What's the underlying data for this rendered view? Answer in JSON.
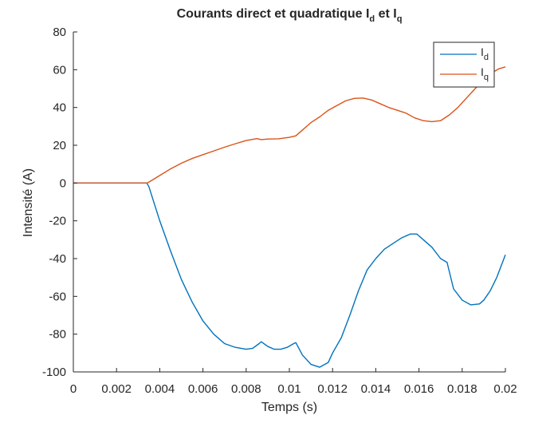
{
  "chart_data": {
    "type": "line",
    "title": {
      "main": "Courants direct et quadratique I",
      "sub1": "d",
      "mid": " et I",
      "sub2": "q"
    },
    "xlabel": "Temps (s)",
    "ylabel": "Intensité (A)",
    "xlim": [
      0,
      0.02
    ],
    "ylim": [
      -100,
      80
    ],
    "xticks": [
      0,
      0.002,
      0.004,
      0.006,
      0.008,
      0.01,
      0.012,
      0.014,
      0.016,
      0.018,
      0.02
    ],
    "xtick_labels": [
      "0",
      "0.002",
      "0.004",
      "0.006",
      "0.008",
      "0.01",
      "0.012",
      "0.014",
      "0.016",
      "0.018",
      "0.02"
    ],
    "yticks": [
      -100,
      -80,
      -60,
      -40,
      -20,
      0,
      20,
      40,
      60,
      80
    ],
    "ytick_labels": [
      "-100",
      "-80",
      "-60",
      "-40",
      "-20",
      "0",
      "20",
      "40",
      "60",
      "80"
    ],
    "grid": false,
    "legend_position": "top-right",
    "series": [
      {
        "name": "I",
        "subscript": "d",
        "color": "#0072BD",
        "x": [
          0,
          0.0034,
          0.0035,
          0.004,
          0.0045,
          0.005,
          0.0055,
          0.006,
          0.0065,
          0.007,
          0.0075,
          0.008,
          0.0083,
          0.0086,
          0.0087,
          0.009,
          0.0093,
          0.0096,
          0.0099,
          0.0102,
          0.0103,
          0.0106,
          0.011,
          0.0114,
          0.0118,
          0.012,
          0.0124,
          0.0128,
          0.0132,
          0.0136,
          0.014,
          0.0144,
          0.0148,
          0.0152,
          0.0156,
          0.0159,
          0.0162,
          0.0166,
          0.017,
          0.0173,
          0.0176,
          0.018,
          0.0184,
          0.0188,
          0.019,
          0.0193,
          0.0196,
          0.02
        ],
        "y": [
          0,
          0,
          -2,
          -20,
          -36,
          -51,
          -63,
          -73,
          -80,
          -85,
          -87,
          -88,
          -87.5,
          -85,
          -84,
          -86.5,
          -88,
          -88,
          -87,
          -85,
          -84.5,
          -91,
          -96,
          -97.5,
          -95,
          -90,
          -82,
          -70,
          -57,
          -46,
          -40,
          -35,
          -32,
          -29,
          -27,
          -27,
          -30,
          -34,
          -40,
          -42,
          -56,
          -62,
          -64.5,
          -64,
          -62,
          -57,
          -50,
          -38
        ]
      },
      {
        "name": "I",
        "subscript": "q",
        "color": "#D95319",
        "x": [
          0,
          0.0034,
          0.0035,
          0.004,
          0.0045,
          0.005,
          0.0055,
          0.006,
          0.0065,
          0.007,
          0.0075,
          0.008,
          0.0085,
          0.0087,
          0.009,
          0.0095,
          0.01,
          0.0103,
          0.0106,
          0.011,
          0.0114,
          0.0118,
          0.0122,
          0.0126,
          0.013,
          0.0134,
          0.0138,
          0.0142,
          0.0146,
          0.015,
          0.0154,
          0.0158,
          0.0162,
          0.0166,
          0.017,
          0.0174,
          0.0178,
          0.0182,
          0.0186,
          0.019,
          0.0194,
          0.0197,
          0.02
        ],
        "y": [
          0,
          0,
          0.5,
          4,
          7.5,
          10.5,
          13,
          15,
          17,
          19,
          20.8,
          22.5,
          23.5,
          23,
          23.3,
          23.4,
          24.2,
          25,
          28,
          32,
          35,
          38.5,
          41,
          43.5,
          44.8,
          45,
          44,
          42,
          40,
          38.5,
          37,
          34.5,
          33,
          32.5,
          33,
          36,
          40,
          45,
          50,
          54.5,
          58.5,
          60.5,
          61.5
        ]
      }
    ]
  }
}
